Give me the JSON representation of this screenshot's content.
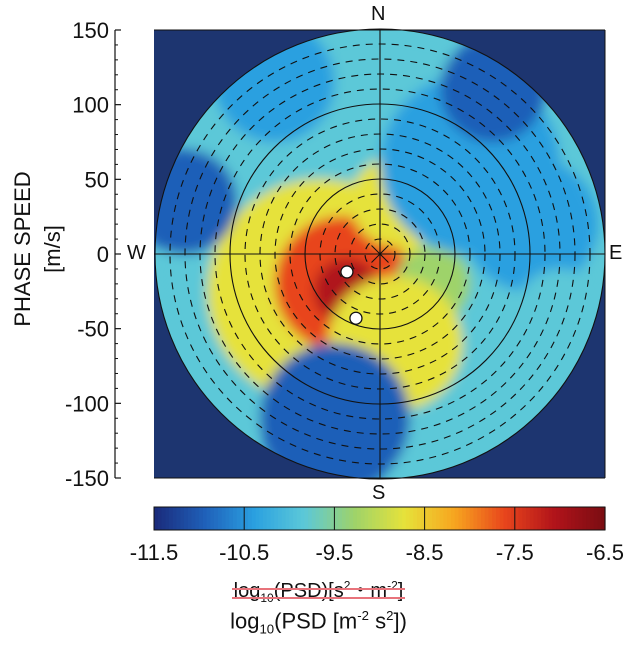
{
  "chart_data": {
    "type": "heatmap",
    "projection": "polar",
    "title": "",
    "ylabel": "PHASE SPEED [m/s]",
    "ylim": [
      -150,
      150
    ],
    "xlim": [
      -150,
      150
    ],
    "y_ticks": [
      "150",
      "100",
      "50",
      "0",
      "-50",
      "-100",
      "-150"
    ],
    "y_tick_values": [
      150,
      100,
      50,
      0,
      -50,
      -100,
      -150
    ],
    "compass": {
      "north": "N",
      "south": "S",
      "west": "W",
      "east": "E"
    },
    "ring_speeds": [
      50,
      100,
      150
    ],
    "dashed_ring_spacing": 10,
    "spoke_angles_deg": [
      0,
      45,
      90,
      135,
      180,
      225,
      270,
      315
    ],
    "colorbar": {
      "min": -11.5,
      "max": -6.5,
      "ticks": [
        "-11.5",
        "-10.5",
        "-9.5",
        "-8.5",
        "-7.5",
        "-6.5"
      ],
      "colors": [
        "#1a2a7a",
        "#1f5fb8",
        "#2aa0e0",
        "#5cc8d8",
        "#9ed36a",
        "#e6e23a",
        "#f7a51f",
        "#e8451c",
        "#b0131a",
        "#7a0d12"
      ],
      "unit_old": {
        "prefix": "log",
        "sub": "10",
        "main": "(PSD)[s",
        "sup1": "2",
        "mid": "・m",
        "sup2": "-2",
        "end": "]"
      },
      "unit_new": {
        "prefix": "log",
        "sub": "10",
        "main": "(PSD [m",
        "sup1": "-2",
        "mid": " s",
        "sup2": "2",
        "end": "])"
      }
    },
    "background_color": "#1d3570",
    "markers": [
      {
        "x": -22,
        "y": -12
      },
      {
        "x": -16,
        "y": -43
      }
    ],
    "blobs": [
      {
        "x": 0,
        "y": 0,
        "r": 145,
        "value": -10.1
      },
      {
        "x": -40,
        "y": -25,
        "r": 75,
        "value": -8.9
      },
      {
        "x": -25,
        "y": -20,
        "r": 45,
        "value": -7.6
      },
      {
        "x": -22,
        "y": -25,
        "r": 22,
        "value": -7.2
      },
      {
        "x": 10,
        "y": 35,
        "r": 30,
        "value": -8.9
      },
      {
        "x": 35,
        "y": -20,
        "r": 25,
        "value": -9.2
      },
      {
        "x": 10,
        "y": -60,
        "r": 45,
        "value": -8.9
      },
      {
        "x": 60,
        "y": 60,
        "r": 60,
        "value": -10.6
      },
      {
        "x": 100,
        "y": 20,
        "r": 45,
        "value": -10.5
      },
      {
        "x": -130,
        "y": 35,
        "r": 35,
        "value": -10.8
      },
      {
        "x": 75,
        "y": 110,
        "r": 35,
        "value": -10.9
      },
      {
        "x": -30,
        "y": -110,
        "r": 50,
        "value": -10.7
      },
      {
        "x": -70,
        "y": 115,
        "r": 40,
        "value": -10.6
      },
      {
        "x": 120,
        "y": -40,
        "r": 30,
        "value": -10.0
      }
    ]
  }
}
